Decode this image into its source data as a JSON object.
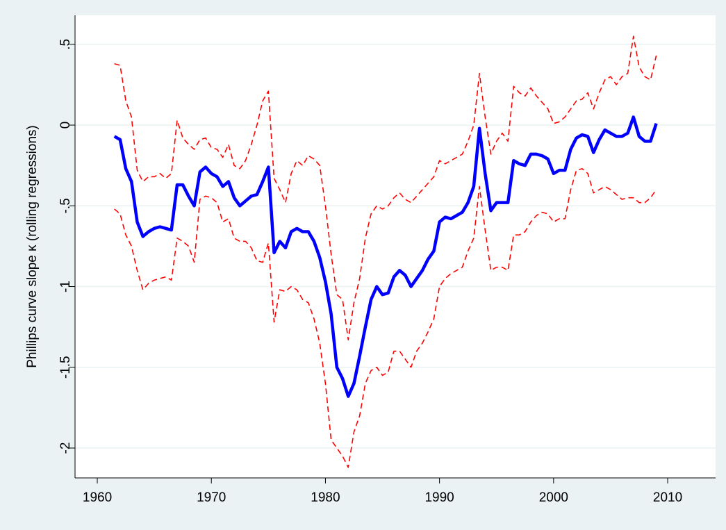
{
  "chart_data": {
    "type": "line",
    "ylabel": "Phillips curve slope  κ (rolling regressions)",
    "xlim": [
      1958.05,
      2014.2
    ],
    "ylim": [
      -2.185,
      0.68
    ],
    "xticks": [
      1960,
      1970,
      1980,
      1990,
      2000,
      2010
    ],
    "yticks": [
      -2,
      -1.5,
      -1,
      {
        "value": -0.5,
        "label": "-.5"
      },
      0,
      {
        "value": 0.5,
        "label": ".5"
      }
    ],
    "grid": true,
    "x": [
      1961.5,
      1962,
      1962.5,
      1963,
      1963.5,
      1964,
      1964.5,
      1965,
      1965.5,
      1966,
      1966.5,
      1967,
      1967.5,
      1968,
      1968.5,
      1969,
      1969.5,
      1970,
      1970.5,
      1971,
      1971.5,
      1972,
      1972.5,
      1973,
      1973.5,
      1974,
      1974.5,
      1975,
      1975.5,
      1976,
      1976.5,
      1977,
      1977.5,
      1978,
      1978.5,
      1979,
      1979.5,
      1980,
      1980.5,
      1981,
      1981.5,
      1982,
      1982.5,
      1983,
      1983.5,
      1984,
      1984.5,
      1985,
      1985.5,
      1986,
      1986.5,
      1987,
      1987.5,
      1988,
      1988.5,
      1989,
      1989.5,
      1990,
      1990.5,
      1991,
      1991.5,
      1992,
      1992.5,
      1993,
      1993.5,
      1994,
      1994.5,
      1995,
      1995.5,
      1996,
      1996.5,
      1997,
      1997.5,
      1998,
      1998.5,
      1999,
      1999.5,
      2000,
      2000.5,
      2001,
      2001.5,
      2002,
      2002.5,
      2003,
      2003.5,
      2004,
      2004.5,
      2005,
      2005.5,
      2006,
      2006.5,
      2007,
      2007.5,
      2008,
      2008.5,
      2009
    ],
    "series": [
      {
        "color": "#ff0000",
        "dashed": true,
        "values": [
          0.38,
          0.37,
          0.15,
          0.05,
          -0.28,
          -0.35,
          -0.32,
          -0.32,
          -0.3,
          -0.33,
          -0.3,
          0.03,
          -0.08,
          -0.12,
          -0.15,
          -0.09,
          -0.08,
          -0.14,
          -0.15,
          -0.2,
          -0.12,
          -0.25,
          -0.27,
          -0.22,
          -0.12,
          0.0,
          0.15,
          0.21,
          -0.33,
          -0.4,
          -0.48,
          -0.3,
          -0.22,
          -0.25,
          -0.19,
          -0.21,
          -0.25,
          -0.5,
          -0.8,
          -1.05,
          -1.08,
          -1.33,
          -1.1,
          -0.95,
          -0.7,
          -0.55,
          -0.5,
          -0.52,
          -0.5,
          -0.45,
          -0.42,
          -0.46,
          -0.48,
          -0.44,
          -0.4,
          -0.36,
          -0.32,
          -0.22,
          -0.24,
          -0.22,
          -0.2,
          -0.18,
          -0.1,
          0.0,
          0.32,
          0.05,
          -0.18,
          -0.1,
          -0.05,
          -0.1,
          0.24,
          0.2,
          0.18,
          0.23,
          0.18,
          0.14,
          0.1,
          0.01,
          0.02,
          0.05,
          0.1,
          0.15,
          0.16,
          0.2,
          0.1,
          0.2,
          0.28,
          0.3,
          0.25,
          0.3,
          0.32,
          0.55,
          0.36,
          0.3,
          0.28,
          0.43
        ]
      },
      {
        "color": "#ff0000",
        "dashed": true,
        "values": [
          -0.52,
          -0.55,
          -0.68,
          -0.75,
          -0.9,
          -1.02,
          -0.98,
          -0.96,
          -0.95,
          -0.94,
          -0.96,
          -0.7,
          -0.72,
          -0.75,
          -0.85,
          -0.46,
          -0.44,
          -0.45,
          -0.48,
          -0.6,
          -0.58,
          -0.7,
          -0.72,
          -0.72,
          -0.76,
          -0.84,
          -0.85,
          -0.73,
          -1.22,
          -1.02,
          -1.03,
          -1.0,
          -1.02,
          -1.08,
          -1.1,
          -1.2,
          -1.35,
          -1.6,
          -1.95,
          -2.0,
          -2.05,
          -2.12,
          -1.9,
          -1.8,
          -1.6,
          -1.52,
          -1.5,
          -1.55,
          -1.53,
          -1.4,
          -1.4,
          -1.45,
          -1.5,
          -1.4,
          -1.35,
          -1.28,
          -1.2,
          -1.0,
          -0.95,
          -0.92,
          -0.9,
          -0.88,
          -0.78,
          -0.7,
          -0.38,
          -0.65,
          -0.9,
          -0.88,
          -0.88,
          -0.9,
          -0.68,
          -0.68,
          -0.66,
          -0.6,
          -0.56,
          -0.54,
          -0.55,
          -0.6,
          -0.58,
          -0.58,
          -0.4,
          -0.28,
          -0.27,
          -0.3,
          -0.42,
          -0.4,
          -0.38,
          -0.4,
          -0.43,
          -0.46,
          -0.45,
          -0.45,
          -0.48,
          -0.48,
          -0.45,
          -0.4
        ]
      },
      {
        "color": "#0000ff",
        "dashed": false,
        "values": [
          -0.07,
          -0.09,
          -0.27,
          -0.35,
          -0.6,
          -0.69,
          -0.66,
          -0.64,
          -0.63,
          -0.64,
          -0.65,
          -0.37,
          -0.37,
          -0.44,
          -0.5,
          -0.29,
          -0.26,
          -0.3,
          -0.32,
          -0.38,
          -0.35,
          -0.45,
          -0.5,
          -0.47,
          -0.44,
          -0.43,
          -0.35,
          -0.26,
          -0.79,
          -0.72,
          -0.76,
          -0.66,
          -0.64,
          -0.66,
          -0.66,
          -0.72,
          -0.82,
          -0.97,
          -1.17,
          -1.5,
          -1.57,
          -1.68,
          -1.6,
          -1.43,
          -1.25,
          -1.08,
          -1.0,
          -1.05,
          -1.04,
          -0.94,
          -0.9,
          -0.93,
          -1.0,
          -0.95,
          -0.9,
          -0.83,
          -0.78,
          -0.6,
          -0.57,
          -0.58,
          -0.56,
          -0.54,
          -0.48,
          -0.38,
          -0.02,
          -0.3,
          -0.53,
          -0.48,
          -0.48,
          -0.48,
          -0.22,
          -0.24,
          -0.25,
          -0.18,
          -0.18,
          -0.19,
          -0.21,
          -0.3,
          -0.28,
          -0.28,
          -0.15,
          -0.08,
          -0.06,
          -0.07,
          -0.17,
          -0.09,
          -0.03,
          -0.05,
          -0.07,
          -0.07,
          -0.05,
          0.05,
          -0.07,
          -0.1,
          -0.1,
          0.01
        ]
      }
    ]
  }
}
